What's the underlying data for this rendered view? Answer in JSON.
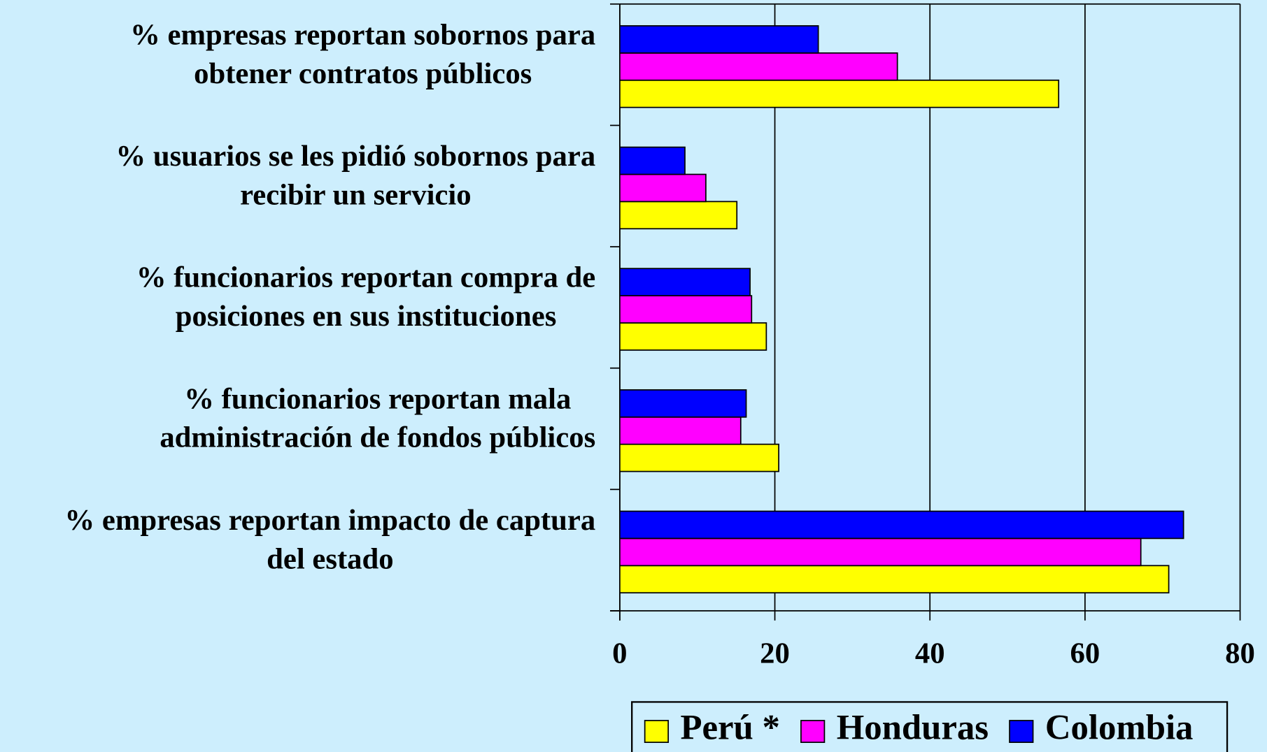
{
  "chart_data": {
    "type": "hbar",
    "categories": [
      "% empresas reportan sobornos para\nobtener contratos públicos",
      "% usuarios se les pidió sobornos para\nrecibir un servicio",
      "%  funcionarios reportan compra de\nposiciones en sus instituciones",
      "% funcionarios reportan mala\nadministración de fondos públicos",
      "% empresas reportan impacto de captura\ndel estado"
    ],
    "series": [
      {
        "name": "Perú *",
        "color": "#ffff00",
        "values": [
          56.6,
          15.1,
          18.9,
          20.5,
          70.8
        ]
      },
      {
        "name": "Honduras",
        "color": "#ff00ff",
        "values": [
          35.8,
          11.1,
          17.0,
          15.6,
          67.2
        ]
      },
      {
        "name": "Colombia",
        "color": "#0000ff",
        "values": [
          25.6,
          8.4,
          16.8,
          16.3,
          72.7
        ]
      }
    ],
    "xlim": [
      0,
      80
    ],
    "xticks": [
      0,
      20,
      40,
      60,
      80
    ],
    "grid": true,
    "legend": "bottom"
  }
}
